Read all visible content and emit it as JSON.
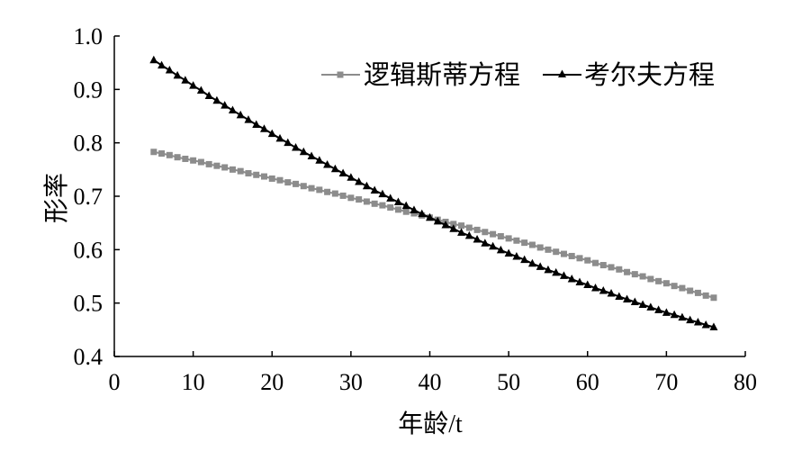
{
  "chart_data": {
    "type": "line",
    "xlabel": "年龄/t",
    "ylabel": "形率",
    "xlim": [
      0,
      80
    ],
    "ylim": [
      0.4,
      1.0
    ],
    "xticks": [
      "0",
      "10",
      "20",
      "30",
      "40",
      "50",
      "60",
      "70",
      "80"
    ],
    "yticks": [
      "0.4",
      "0.5",
      "0.6",
      "0.7",
      "0.8",
      "0.9",
      "1.0"
    ],
    "grid": false,
    "legend": "top-right",
    "x": [
      5,
      6,
      7,
      8,
      9,
      10,
      11,
      12,
      13,
      14,
      15,
      16,
      17,
      18,
      19,
      20,
      21,
      22,
      23,
      24,
      25,
      26,
      27,
      28,
      29,
      30,
      31,
      32,
      33,
      34,
      35,
      36,
      37,
      38,
      39,
      40,
      41,
      42,
      43,
      44,
      45,
      46,
      47,
      48,
      49,
      50,
      51,
      52,
      53,
      54,
      55,
      56,
      57,
      58,
      59,
      60,
      61,
      62,
      63,
      64,
      65,
      66,
      67,
      68,
      69,
      70,
      71,
      72,
      73,
      74,
      75,
      76
    ],
    "series": [
      {
        "name": "逻辑斯蒂方程",
        "color": "#8c8c8c",
        "marker": "square",
        "values": [
          0.783,
          0.78,
          0.777,
          0.773,
          0.77,
          0.767,
          0.764,
          0.76,
          0.757,
          0.754,
          0.75,
          0.747,
          0.743,
          0.74,
          0.737,
          0.733,
          0.73,
          0.726,
          0.723,
          0.719,
          0.715,
          0.712,
          0.708,
          0.705,
          0.701,
          0.697,
          0.694,
          0.69,
          0.686,
          0.683,
          0.679,
          0.675,
          0.671,
          0.668,
          0.664,
          0.66,
          0.656,
          0.652,
          0.648,
          0.645,
          0.641,
          0.637,
          0.633,
          0.629,
          0.625,
          0.621,
          0.617,
          0.613,
          0.609,
          0.604,
          0.6,
          0.596,
          0.592,
          0.588,
          0.584,
          0.58,
          0.575,
          0.571,
          0.567,
          0.563,
          0.558,
          0.554,
          0.55,
          0.545,
          0.541,
          0.537,
          0.532,
          0.528,
          0.523,
          0.519,
          0.514,
          0.51
        ]
      },
      {
        "name": "考尔夫方程",
        "color": "#000000",
        "marker": "triangle",
        "values": [
          0.955,
          0.945,
          0.936,
          0.926,
          0.917,
          0.907,
          0.898,
          0.888,
          0.879,
          0.87,
          0.861,
          0.852,
          0.843,
          0.834,
          0.826,
          0.817,
          0.808,
          0.8,
          0.791,
          0.783,
          0.775,
          0.767,
          0.759,
          0.751,
          0.743,
          0.735,
          0.727,
          0.719,
          0.711,
          0.704,
          0.696,
          0.689,
          0.682,
          0.674,
          0.667,
          0.66,
          0.653,
          0.646,
          0.639,
          0.632,
          0.626,
          0.619,
          0.612,
          0.606,
          0.599,
          0.593,
          0.587,
          0.581,
          0.574,
          0.568,
          0.562,
          0.557,
          0.551,
          0.545,
          0.539,
          0.534,
          0.528,
          0.523,
          0.518,
          0.512,
          0.507,
          0.502,
          0.497,
          0.492,
          0.487,
          0.482,
          0.478,
          0.473,
          0.468,
          0.464,
          0.459,
          0.455
        ]
      }
    ]
  }
}
